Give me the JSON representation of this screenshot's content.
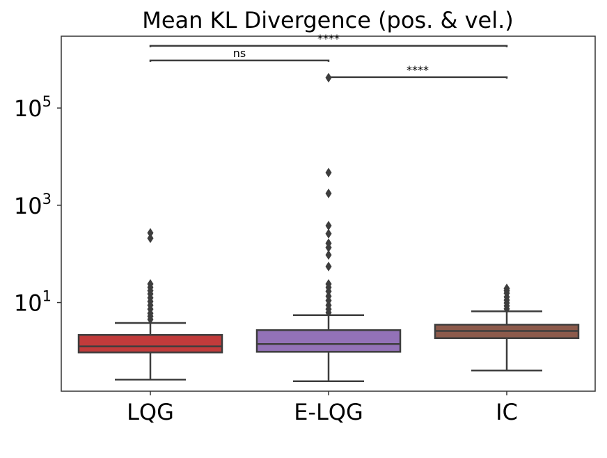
{
  "chart_data": {
    "type": "box",
    "title": "Mean KL Divergence (pos. & vel.)",
    "xlabel": "",
    "ylabel": "",
    "yscale": "log",
    "ylim": [
      0.15,
      3000000
    ],
    "yticks": [
      {
        "value": 10,
        "base": "10",
        "exp": "1"
      },
      {
        "value": 1000,
        "base": "10",
        "exp": "3"
      },
      {
        "value": 100000,
        "base": "10",
        "exp": "5"
      }
    ],
    "categories": [
      "LQG",
      "E-LQG",
      "IC"
    ],
    "series": [
      {
        "name": "LQG",
        "color": "#c23b3b",
        "whisker_low": 0.26,
        "q1": 0.94,
        "median": 1.25,
        "q3": 2.15,
        "whisker_high": 3.8,
        "outliers": [
          4.5,
          5.2,
          6.0,
          7.3,
          8.8,
          10.5,
          12.5,
          15,
          17.5,
          20.5,
          24,
          210,
          270
        ]
      },
      {
        "name": "E-LQG",
        "color": "#9372b8",
        "whisker_low": 0.24,
        "q1": 0.97,
        "median": 1.4,
        "q3": 2.7,
        "whisker_high": 5.5,
        "outliers": [
          6.2,
          7.3,
          8.8,
          11,
          13.5,
          17,
          20.5,
          24,
          55,
          95,
          135,
          165,
          260,
          380,
          1750,
          4700,
          420000
        ]
      },
      {
        "name": "IC",
        "color": "#8c5a4b",
        "whisker_low": 0.4,
        "q1": 1.85,
        "median": 2.6,
        "q3": 3.5,
        "whisker_high": 6.6,
        "outliers": [
          7.4,
          8.5,
          9.8,
          11.2,
          13,
          15.5,
          17.5,
          19.5
        ]
      }
    ],
    "annotations": [
      {
        "from": "LQG",
        "to": "E-LQG",
        "label": "ns",
        "y": 950000
      },
      {
        "from": "LQG",
        "to": "IC",
        "label": "****",
        "y": 1900000
      },
      {
        "from": "E-LQG",
        "to": "IC",
        "label": "****",
        "y": 430000
      }
    ]
  }
}
